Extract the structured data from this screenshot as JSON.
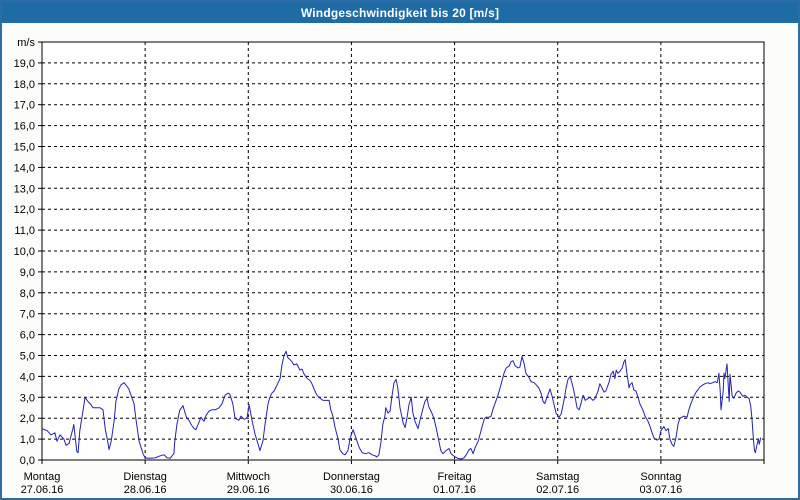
{
  "window": {
    "title": "Windgeschwindigkeit bis 20 [m/s]"
  },
  "colors": {
    "titlebar_bg": "#1e6ba5",
    "titlebar_text": "#ffffff",
    "window_border": "#2e6da4",
    "window_bg": "#fcfdfa",
    "plot_bg": "#fdfefd",
    "grid": "#000000",
    "axis": "#000000",
    "label": "#000000",
    "series_line": "#2323ae"
  },
  "chart_data": {
    "type": "line",
    "title": "Windgeschwindigkeit bis 20 [m/s]",
    "unit_label": "m/s",
    "ylim": [
      0,
      20
    ],
    "ytick_step": 1,
    "ytick_labels": [
      "0,0",
      "1,0",
      "2,0",
      "3,0",
      "4,0",
      "5,0",
      "6,0",
      "7,0",
      "8,0",
      "9,0",
      "10,0",
      "11,0",
      "12,0",
      "13,0",
      "14,0",
      "15,0",
      "16,0",
      "17,0",
      "18,0",
      "19,0"
    ],
    "grid_style": "dashed",
    "legend": "none",
    "x_axis_days": [
      {
        "name": "Montag",
        "date": "27.06.16"
      },
      {
        "name": "Dienstag",
        "date": "28.06.16"
      },
      {
        "name": "Mittwoch",
        "date": "29.06.16"
      },
      {
        "name": "Donnerstag",
        "date": "30.06.16"
      },
      {
        "name": "Freitag",
        "date": "01.07.16"
      },
      {
        "name": "Samstag",
        "date": "02.07.16"
      },
      {
        "name": "Sonntag",
        "date": "03.07.16"
      }
    ],
    "hours_per_day": 24,
    "total_hours": 168,
    "series": [
      {
        "name": "Windgeschwindigkeit",
        "unit": "m/s",
        "color": "#2323ae",
        "points": [
          [
            0,
            1.5
          ],
          [
            1.2,
            1.4
          ],
          [
            2.1,
            1.2
          ],
          [
            3,
            1.3
          ],
          [
            3.5,
            0.9
          ],
          [
            4.2,
            1.2
          ],
          [
            5.1,
            1
          ],
          [
            5.6,
            0.7
          ],
          [
            6.3,
            0.8
          ],
          [
            7.2,
            1.5
          ],
          [
            7.4,
            1.7
          ],
          [
            8.1,
            0.4
          ],
          [
            8.4,
            0.35
          ],
          [
            8.8,
            1.4
          ],
          [
            9.5,
            2.3
          ],
          [
            10,
            3
          ],
          [
            10.7,
            2.8
          ],
          [
            11.2,
            2.7
          ],
          [
            11.9,
            2.5
          ],
          [
            13.5,
            2.5
          ],
          [
            14.2,
            2.4
          ],
          [
            14.7,
            1.5
          ],
          [
            15.4,
            0.75
          ],
          [
            15.6,
            0.5
          ],
          [
            16.1,
            0.9
          ],
          [
            16.8,
            1.9
          ],
          [
            17.2,
            2.8
          ],
          [
            17.9,
            3.4
          ],
          [
            18.4,
            3.6
          ],
          [
            19.1,
            3.7
          ],
          [
            19.5,
            3.6
          ],
          [
            20.2,
            3.4
          ],
          [
            20.7,
            3.1
          ],
          [
            21.4,
            2.7
          ],
          [
            21.9,
            1.9
          ],
          [
            22.6,
            0.9
          ],
          [
            23.5,
            0.3
          ],
          [
            24,
            0.1
          ],
          [
            25.1,
            0.08
          ],
          [
            26.3,
            0.1
          ],
          [
            27.5,
            0.2
          ],
          [
            28.4,
            0.25
          ],
          [
            29.1,
            0.1
          ],
          [
            29.8,
            0.08
          ],
          [
            30.7,
            0.3
          ],
          [
            30.9,
            0.9
          ],
          [
            31.4,
            1.7
          ],
          [
            31.9,
            2.25
          ],
          [
            32.1,
            2.4
          ],
          [
            32.8,
            2.6
          ],
          [
            33.3,
            2.25
          ],
          [
            33.7,
            2
          ],
          [
            34.2,
            1.9
          ],
          [
            34.7,
            1.7
          ],
          [
            35.4,
            1.5
          ],
          [
            35.8,
            1.45
          ],
          [
            36.5,
            1.8
          ],
          [
            37,
            2.05
          ],
          [
            37.7,
            1.85
          ],
          [
            38.2,
            2.15
          ],
          [
            38.9,
            2.35
          ],
          [
            39.6,
            2.4
          ],
          [
            40.3,
            2.4
          ],
          [
            41.2,
            2.5
          ],
          [
            41.9,
            2.7
          ],
          [
            42.6,
            3.1
          ],
          [
            43.3,
            3.2
          ],
          [
            43.7,
            3.15
          ],
          [
            44.4,
            2.7
          ],
          [
            44.9,
            2
          ],
          [
            45.8,
            1.9
          ],
          [
            46.3,
            2.1
          ],
          [
            47,
            1.95
          ],
          [
            47.7,
            2
          ],
          [
            48.2,
            2.65
          ],
          [
            48.9,
            1.85
          ],
          [
            49.6,
            1.2
          ],
          [
            50.3,
            0.75
          ],
          [
            50.7,
            0.45
          ],
          [
            51.4,
            0.9
          ],
          [
            51.9,
            1.7
          ],
          [
            52.6,
            2.7
          ],
          [
            53.1,
            3.05
          ],
          [
            53.5,
            3.2
          ],
          [
            54,
            3.3
          ],
          [
            54.7,
            3.6
          ],
          [
            55.4,
            3.9
          ],
          [
            55.8,
            4.5
          ],
          [
            56.3,
            5
          ],
          [
            56.8,
            5.2
          ],
          [
            57.2,
            4.9
          ],
          [
            57.7,
            4.8
          ],
          [
            58.2,
            4.7
          ],
          [
            58.6,
            4.55
          ],
          [
            59.3,
            4.6
          ],
          [
            60,
            4.3
          ],
          [
            60.5,
            4.35
          ],
          [
            61,
            4.1
          ],
          [
            61.7,
            3.9
          ],
          [
            62.4,
            3.8
          ],
          [
            62.8,
            3.65
          ],
          [
            63.5,
            3.3
          ],
          [
            64,
            3.1
          ],
          [
            64.7,
            2.95
          ],
          [
            65.4,
            2.85
          ],
          [
            66.1,
            2.85
          ],
          [
            66.8,
            2.85
          ],
          [
            67.2,
            2.4
          ],
          [
            67.7,
            2.1
          ],
          [
            68.2,
            1.55
          ],
          [
            68.9,
            1
          ],
          [
            69.3,
            0.5
          ],
          [
            70,
            0.3
          ],
          [
            70.5,
            0.25
          ],
          [
            71.2,
            0.45
          ],
          [
            71.7,
            1.05
          ],
          [
            72.4,
            1.45
          ],
          [
            73.3,
            0.9
          ],
          [
            73.8,
            0.6
          ],
          [
            74.5,
            0.35
          ],
          [
            75.2,
            0.3
          ],
          [
            76.1,
            0.35
          ],
          [
            76.8,
            0.25
          ],
          [
            77.5,
            0.2
          ],
          [
            77.9,
            0.15
          ],
          [
            78.4,
            0.25
          ],
          [
            78.9,
            0.9
          ],
          [
            79.3,
            1.7
          ],
          [
            79.8,
            2.1
          ],
          [
            80,
            2.5
          ],
          [
            80.5,
            2.25
          ],
          [
            81,
            2.35
          ],
          [
            81.4,
            3
          ],
          [
            81.9,
            3.7
          ],
          [
            82.4,
            3.85
          ],
          [
            82.8,
            3.45
          ],
          [
            83.3,
            2.5
          ],
          [
            84,
            1.8
          ],
          [
            84.5,
            1.55
          ],
          [
            84.9,
            2
          ],
          [
            85.4,
            2.65
          ],
          [
            85.9,
            3
          ],
          [
            86.3,
            2.25
          ],
          [
            86.8,
            1.85
          ],
          [
            87.5,
            1.5
          ],
          [
            88,
            1.95
          ],
          [
            88.7,
            2.5
          ],
          [
            89.1,
            2.8
          ],
          [
            89.6,
            2.95
          ],
          [
            90,
            2.55
          ],
          [
            90.7,
            2.25
          ],
          [
            91.2,
            2
          ],
          [
            91.7,
            1.55
          ],
          [
            92.4,
            0.85
          ],
          [
            92.8,
            0.45
          ],
          [
            93.3,
            0.3
          ],
          [
            94,
            0.45
          ],
          [
            94.7,
            0.55
          ],
          [
            95.2,
            0.3
          ],
          [
            96.1,
            0.15
          ],
          [
            96.8,
            0.08
          ],
          [
            97.5,
            0.05
          ],
          [
            98.2,
            0.1
          ],
          [
            98.7,
            0.25
          ],
          [
            99.4,
            0.5
          ],
          [
            99.8,
            0.55
          ],
          [
            100.3,
            0.3
          ],
          [
            100.8,
            0.6
          ],
          [
            101.5,
            0.9
          ],
          [
            101.9,
            1.2
          ],
          [
            102.4,
            1.6
          ],
          [
            102.9,
            1.95
          ],
          [
            103.3,
            2.05
          ],
          [
            104,
            2.05
          ],
          [
            104.5,
            2.1
          ],
          [
            104.9,
            2.4
          ],
          [
            105.4,
            2.7
          ],
          [
            106.1,
            3.1
          ],
          [
            106.6,
            3.45
          ],
          [
            107,
            3.75
          ],
          [
            107.5,
            4.15
          ],
          [
            108,
            4.4
          ],
          [
            108.7,
            4.5
          ],
          [
            109.1,
            4.7
          ],
          [
            109.6,
            4.75
          ],
          [
            110.1,
            4.5
          ],
          [
            110.8,
            4.4
          ],
          [
            111.2,
            4.45
          ],
          [
            111.7,
            4.95
          ],
          [
            112.2,
            4.6
          ],
          [
            112.6,
            4.15
          ],
          [
            113.3,
            3.95
          ],
          [
            113.8,
            3.75
          ],
          [
            114.5,
            3.7
          ],
          [
            115,
            3.6
          ],
          [
            115.6,
            3.45
          ],
          [
            116.1,
            3.2
          ],
          [
            116.6,
            2.8
          ],
          [
            117,
            2.7
          ],
          [
            117.7,
            3.1
          ],
          [
            118.2,
            3.4
          ],
          [
            118.7,
            3.05
          ],
          [
            119.1,
            2.7
          ],
          [
            119.6,
            2.25
          ],
          [
            120.3,
            2.05
          ],
          [
            120.8,
            2.2
          ],
          [
            121.5,
            2.9
          ],
          [
            121.9,
            3.4
          ],
          [
            122.4,
            3.85
          ],
          [
            122.9,
            4
          ],
          [
            123.6,
            3.45
          ],
          [
            124,
            3.05
          ],
          [
            124.5,
            2.5
          ],
          [
            125,
            2.4
          ],
          [
            125.4,
            2.7
          ],
          [
            125.9,
            3.1
          ],
          [
            126.4,
            2.85
          ],
          [
            127.1,
            2.95
          ],
          [
            127.5,
            3
          ],
          [
            128.2,
            2.85
          ],
          [
            128.7,
            2.95
          ],
          [
            129.4,
            3.3
          ],
          [
            129.8,
            3.65
          ],
          [
            130.3,
            3.45
          ],
          [
            130.8,
            3.25
          ],
          [
            131.2,
            3.3
          ],
          [
            131.9,
            3.7
          ],
          [
            132.4,
            4.1
          ],
          [
            132.9,
            4.25
          ],
          [
            133.3,
            3.9
          ],
          [
            133.6,
            4.3
          ],
          [
            134,
            4.15
          ],
          [
            134.5,
            4.25
          ],
          [
            135,
            4.4
          ],
          [
            135.4,
            4.7
          ],
          [
            135.7,
            4.8
          ],
          [
            136.1,
            4.15
          ],
          [
            136.6,
            3.45
          ],
          [
            136.8,
            3.6
          ],
          [
            137.3,
            3.7
          ],
          [
            137.7,
            3.35
          ],
          [
            138.2,
            3.3
          ],
          [
            138.7,
            3
          ],
          [
            139.1,
            2.7
          ],
          [
            139.8,
            2.4
          ],
          [
            140.3,
            2.1
          ],
          [
            141,
            1.85
          ],
          [
            141.5,
            1.6
          ],
          [
            141.9,
            1.35
          ],
          [
            142.4,
            1.05
          ],
          [
            143.1,
            0.95
          ],
          [
            143.6,
            1
          ],
          [
            144,
            1.4
          ],
          [
            144.7,
            1.6
          ],
          [
            145.2,
            1.4
          ],
          [
            145.7,
            1.5
          ],
          [
            146.1,
            1
          ],
          [
            146.6,
            0.75
          ],
          [
            147,
            0.65
          ],
          [
            147.5,
            1.05
          ],
          [
            148,
            1.7
          ],
          [
            148.4,
            2
          ],
          [
            148.9,
            2.05
          ],
          [
            149.4,
            2.1
          ],
          [
            150.1,
            2.05
          ],
          [
            150.5,
            2.4
          ],
          [
            151,
            2.7
          ],
          [
            151.7,
            3.05
          ],
          [
            152.2,
            3.25
          ],
          [
            152.6,
            3.35
          ],
          [
            153.1,
            3.5
          ],
          [
            153.8,
            3.6
          ],
          [
            154.3,
            3.65
          ],
          [
            155,
            3.7
          ],
          [
            155.4,
            3.65
          ],
          [
            156.1,
            3.7
          ],
          [
            156.6,
            3.75
          ],
          [
            157.1,
            3.7
          ],
          [
            157.5,
            4.15
          ],
          [
            157.8,
            3.3
          ],
          [
            158,
            2.4
          ],
          [
            158.5,
            3.3
          ],
          [
            158.7,
            4.15
          ],
          [
            158.9,
            3.9
          ],
          [
            159.4,
            4.6
          ],
          [
            159.9,
            2.8
          ],
          [
            160.1,
            4.1
          ],
          [
            160.6,
            3.05
          ],
          [
            161,
            2.95
          ],
          [
            161.5,
            3.2
          ],
          [
            162,
            3.3
          ],
          [
            162.4,
            3.25
          ],
          [
            163.1,
            3.05
          ],
          [
            163.6,
            3.1
          ],
          [
            164.1,
            3
          ],
          [
            164.5,
            2.95
          ],
          [
            164.9,
            2.6
          ],
          [
            165.2,
            1.95
          ],
          [
            165.4,
            1.4
          ],
          [
            165.6,
            0.85
          ],
          [
            165.8,
            0.45
          ],
          [
            166,
            0.35
          ],
          [
            166.4,
            0.75
          ],
          [
            166.7,
            1
          ],
          [
            166.9,
            0.75
          ],
          [
            167.2,
            1.05
          ]
        ]
      }
    ]
  }
}
